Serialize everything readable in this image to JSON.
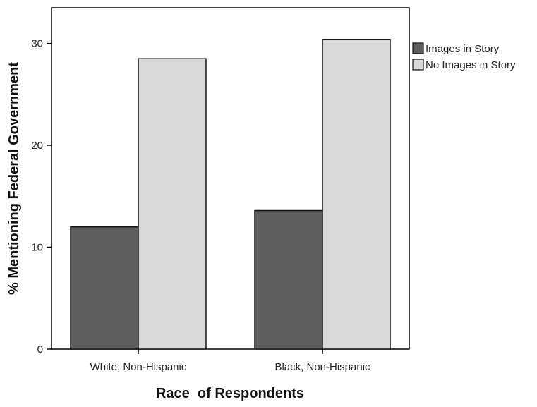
{
  "chart_data": {
    "type": "bar",
    "categories": [
      "White, Non-Hispanic",
      "Black, Non-Hispanic"
    ],
    "series": [
      {
        "name": "Images in Story",
        "values": [
          12.0,
          13.6
        ],
        "color": "#5e5e5e"
      },
      {
        "name": "No Images in Story",
        "values": [
          28.5,
          30.4
        ],
        "color": "#d9d9db"
      }
    ],
    "xlabel": "Race  of Respondents",
    "ylabel": "% Mentioning Federal Government",
    "ylim": [
      0,
      33.5
    ],
    "yticks": [
      0,
      10,
      20,
      30
    ],
    "grid": false,
    "legend_position": "right"
  }
}
